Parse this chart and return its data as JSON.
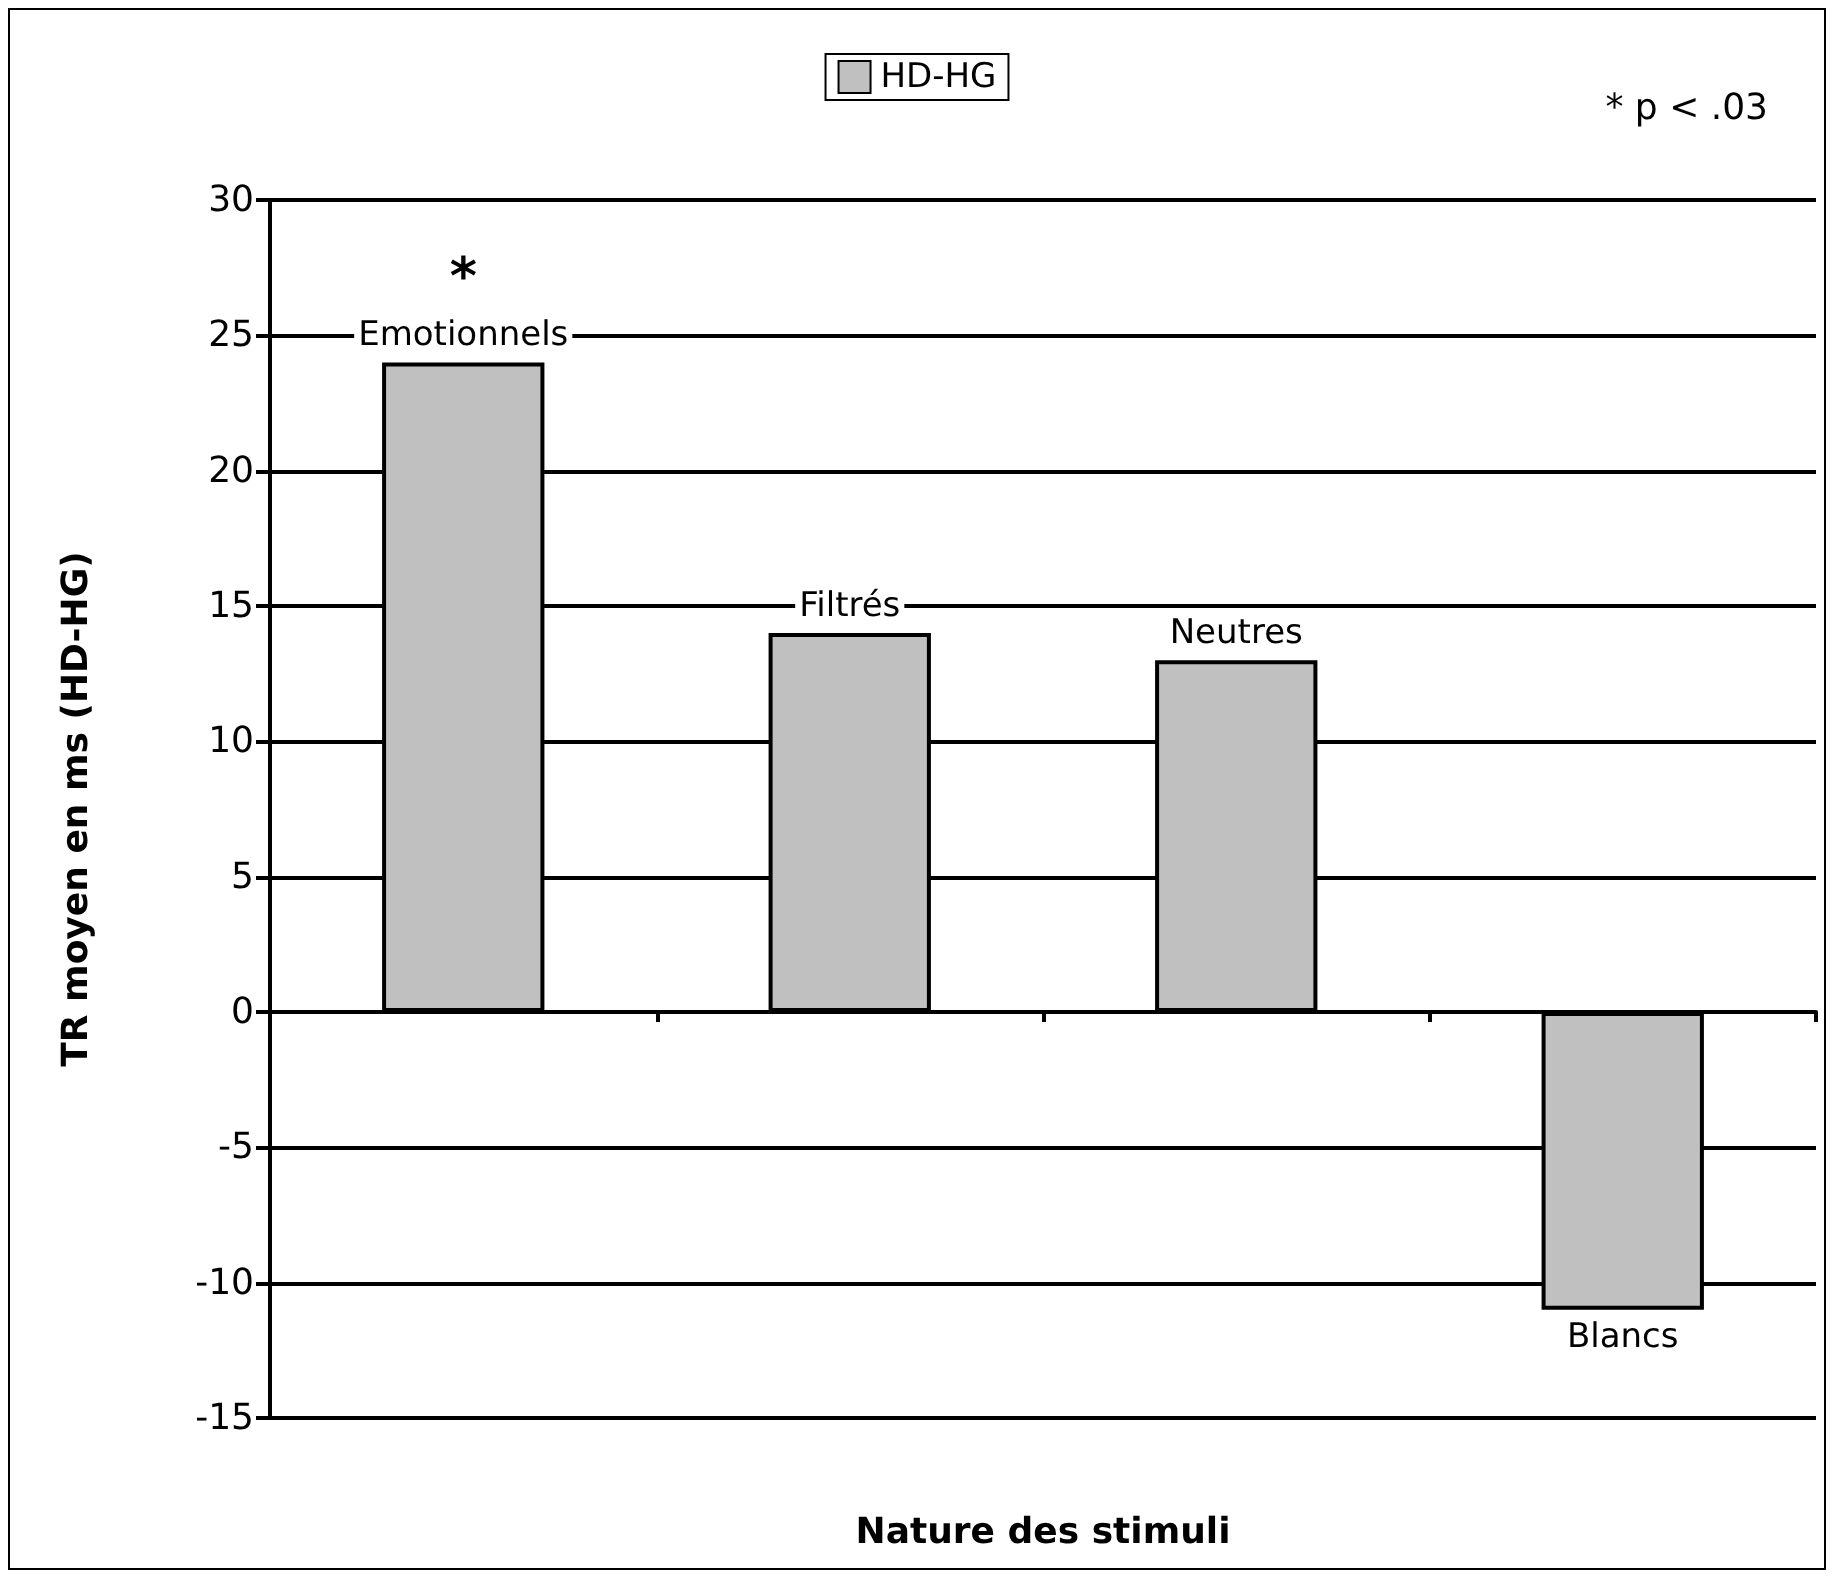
{
  "chart_data": {
    "type": "bar",
    "xlabel": "Nature des stimuli",
    "ylabel": "TR moyen en ms (HD-HG)",
    "categories": [
      "Emotionnels",
      "Filtrés",
      "Neutres",
      "Blancs"
    ],
    "series": [
      {
        "name": "HD-HG",
        "color": "#c0c0c0",
        "values": [
          24,
          14,
          13,
          -11
        ]
      }
    ],
    "ylim": [
      -15,
      30
    ],
    "yticks": [
      -15,
      -10,
      -5,
      0,
      5,
      10,
      15,
      20,
      25,
      30
    ],
    "grid": "y",
    "legend": "top",
    "annotations": [
      {
        "text": "*",
        "x": "Emotionnels",
        "y": 24
      },
      "* p < .03"
    ]
  }
}
